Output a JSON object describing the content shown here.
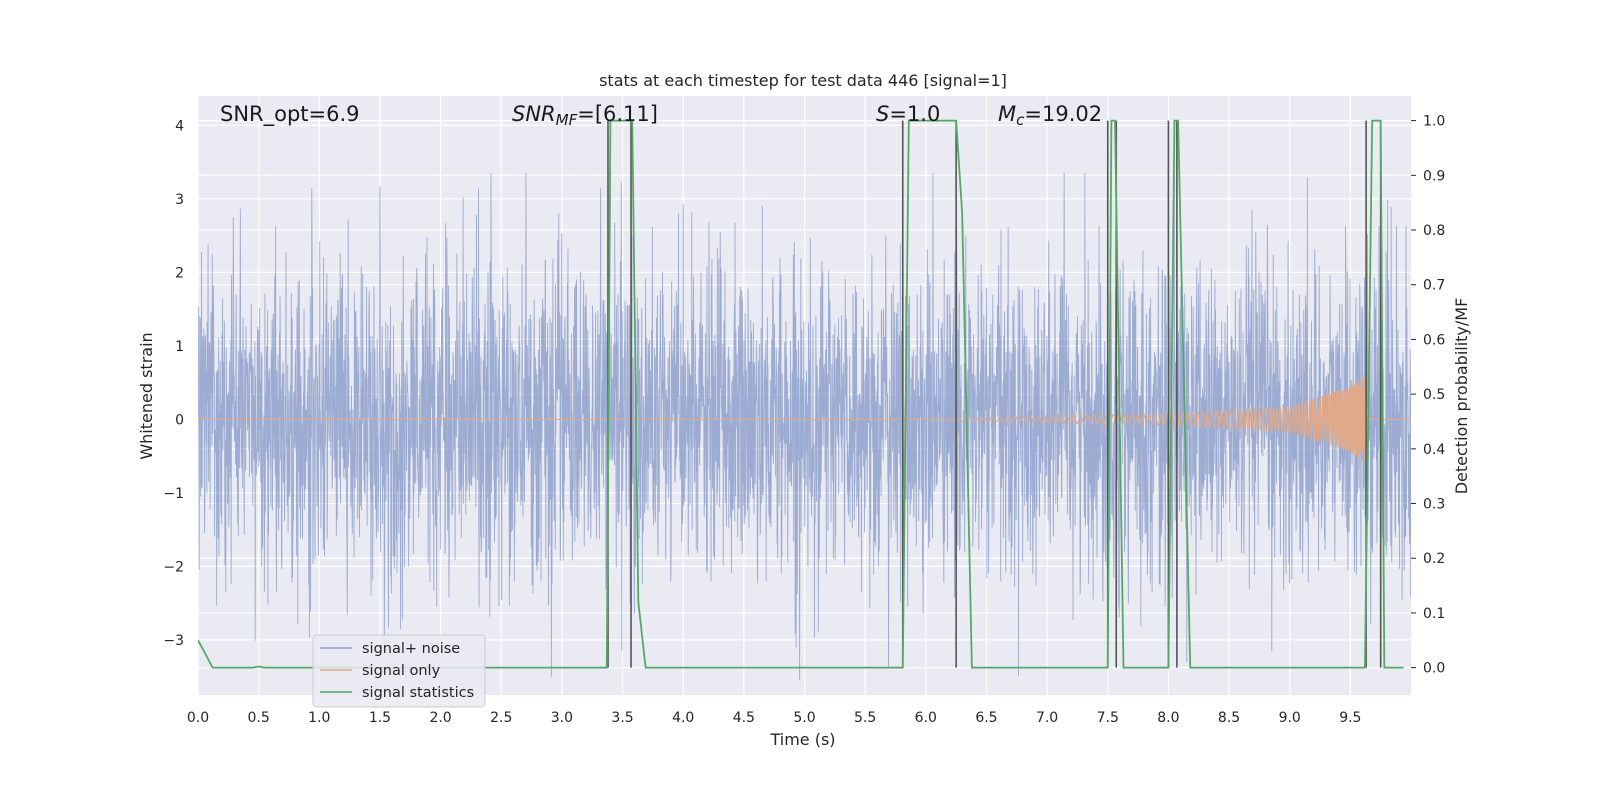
{
  "chart_data": {
    "type": "line",
    "title": "stats at each timestep for test data 446 [signal=1]",
    "xlabel": "Time (s)",
    "ylabel": "Whitened strain",
    "ylabel_right": "Detection probability/MF",
    "xlim": [
      0.0,
      10.0
    ],
    "ylim": [
      -3.75,
      4.4
    ],
    "ylim_right": [
      -0.05,
      1.045
    ],
    "x_ticks": [
      0.0,
      0.5,
      1.0,
      1.5,
      2.0,
      2.5,
      3.0,
      3.5,
      4.0,
      4.5,
      5.0,
      5.5,
      6.0,
      6.5,
      7.0,
      7.5,
      8.0,
      8.5,
      9.0,
      9.5
    ],
    "x_tick_labels": [
      "0.0",
      "0.5",
      "1.0",
      "1.5",
      "2.0",
      "2.5",
      "3.0",
      "3.5",
      "4.0",
      "4.5",
      "5.0",
      "5.5",
      "6.0",
      "6.5",
      "7.0",
      "7.5",
      "8.0",
      "8.5",
      "9.0",
      "9.5"
    ],
    "y_ticks": [
      4,
      3,
      2,
      1,
      0,
      -1,
      -2,
      -3
    ],
    "y_tick_labels": [
      "4",
      "3",
      "2",
      "1",
      "0",
      "−1",
      "−2",
      "−3"
    ],
    "y_ticks_right": [
      1.0,
      0.9,
      0.8,
      0.7,
      0.6,
      0.5,
      0.4,
      0.3,
      0.2,
      0.1,
      0.0
    ],
    "y_tick_labels_right": [
      "1.0",
      "0.9",
      "0.8",
      "0.7",
      "0.6",
      "0.5",
      "0.4",
      "0.3",
      "0.2",
      "0.1",
      "0.0"
    ],
    "grid": true,
    "legend_position": "lower-left",
    "annotations": {
      "snr_opt": "SNR_opt=6.9",
      "snr_mf_sym": "SNR",
      "snr_mf_sub": "MF",
      "snr_mf_val": "=[6.11]",
      "s_sym": "S",
      "s_val": "=1.0",
      "mc_sym": "M",
      "mc_sub": "c",
      "mc_val": "=19.02"
    },
    "series": [
      {
        "name": "signal+ noise",
        "color": "#8da0cb",
        "description_of_values": "whitened noisy strain, roughly zero-mean with spread about ±2.5"
      },
      {
        "name": "signal only",
        "color": "#e0a98a",
        "chirp": {
          "amplitude_envelope": [
            [
              0.0,
              0.0
            ],
            [
              6.0,
              0.01
            ],
            [
              7.0,
              0.05
            ],
            [
              8.0,
              0.08
            ],
            [
              9.0,
              0.17
            ],
            [
              9.5,
              0.45
            ],
            [
              9.62,
              0.6
            ]
          ],
          "end_time": 9.63
        }
      },
      {
        "name": "signal statistics",
        "color": "#55a868",
        "axis": "right",
        "x": [
          0.0,
          0.05,
          0.12,
          0.45,
          0.5,
          0.55,
          0.6,
          3.37,
          3.4,
          3.58,
          3.63,
          3.69,
          5.81,
          5.86,
          6.25,
          6.3,
          6.38,
          7.5,
          7.53,
          7.56,
          7.63,
          8.0,
          8.05,
          8.08,
          8.18,
          9.62,
          9.68,
          9.75,
          9.78,
          9.82,
          9.94
        ],
        "values": [
          0.05,
          0.03,
          0.0,
          0.0,
          0.002,
          0.0,
          0.0,
          0.0,
          1.0,
          1.0,
          0.12,
          0.0,
          0.0,
          1.0,
          1.0,
          0.83,
          0.0,
          0.0,
          1.0,
          1.0,
          0.0,
          0.0,
          1.0,
          1.0,
          0.0,
          0.0,
          1.0,
          1.0,
          0.0,
          0.0,
          0.0
        ]
      }
    ],
    "vertical_lines": {
      "color": "#555555",
      "x": [
        3.38,
        3.57,
        5.81,
        6.25,
        7.5,
        7.57,
        8.0,
        8.07,
        9.63,
        9.75
      ],
      "y_range_right": [
        0.0,
        1.0
      ]
    }
  }
}
